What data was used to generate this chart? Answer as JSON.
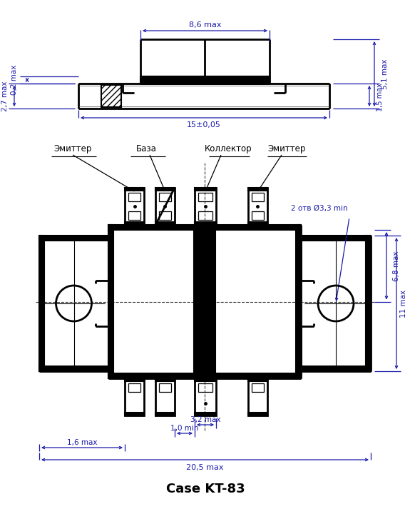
{
  "title": "Case KT-83",
  "labels": {
    "emitter1": "Эмиттер",
    "base": "База",
    "collector": "Коллектор",
    "emitter2": "Эмиттер"
  },
  "dims": {
    "top_width": "8,6 max",
    "total_width": "15±0,05",
    "height_02": "0,2 max",
    "height_27": "2,7 max",
    "height_51": "5,1 max",
    "height_15": "1,5 max",
    "hole": "2 отв Ø3,3 min",
    "dim_68": "6,8 max",
    "dim_11": "11 max",
    "dim_32": "3,2 max",
    "dim_10": "1,0 min",
    "dim_16": "1,6 max",
    "dim_205": "20,5 max"
  },
  "line_color": "#000000",
  "bg_color": "#ffffff",
  "dim_color": "#1a1aaa",
  "fill_black": "#000000"
}
